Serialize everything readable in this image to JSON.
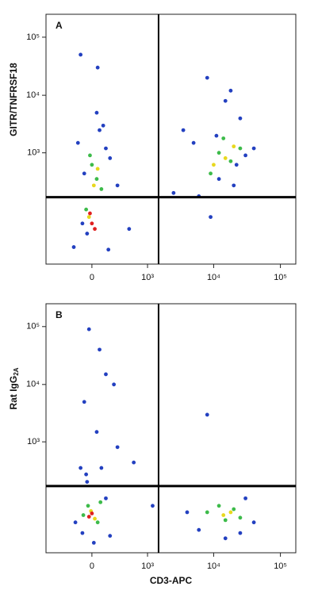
{
  "chart_data": [
    {
      "type": "scatter",
      "panel": "A",
      "y_label": "GITR/TNFRSF18",
      "xlim": [
        -700,
        170000
      ],
      "ylim": [
        -1800,
        248000
      ],
      "xticks": [
        0,
        {
          "value": 1000,
          "label": "10³"
        },
        {
          "value": 10000,
          "label": "10⁴"
        },
        {
          "value": 100000,
          "label": "10⁵"
        }
      ],
      "yticks": [
        {
          "value": 1000,
          "label": "10³"
        },
        {
          "value": 10000,
          "label": "10⁴"
        },
        {
          "value": 100000,
          "label": "10⁵"
        }
      ],
      "quadrant_x": 1480,
      "quadrant_y": 48,
      "series": [
        {
          "color": "#2340c0",
          "x": [
            -150,
            80,
            200,
            -50,
            120,
            -200,
            300,
            50,
            -100,
            150,
            8000,
            15000,
            25000,
            5000,
            12000,
            30000,
            6000,
            20000,
            3500,
            40000,
            60,
            -80,
            180,
            9000,
            18000,
            500,
            2500,
            -120,
            11000,
            22000
          ],
          "y": [
            1500,
            2500,
            800,
            -500,
            3000,
            -900,
            200,
            5000,
            -300,
            1200,
            20000,
            8000,
            4000,
            1500,
            300,
            900,
            60,
            200,
            2500,
            1200,
            30000,
            400,
            -1000,
            -200,
            12000,
            -400,
            100,
            50000,
            2000,
            600
          ]
        },
        {
          "color": "#3dbb4a",
          "x": [
            0,
            50,
            -60,
            100,
            -20,
            12000,
            18000,
            9000,
            25000,
            14000
          ],
          "y": [
            600,
            300,
            -100,
            150,
            900,
            1000,
            700,
            400,
            1200,
            1800
          ]
        },
        {
          "color": "#e8d81e",
          "x": [
            20,
            -30,
            60,
            15000,
            20000,
            10000
          ],
          "y": [
            200,
            -200,
            500,
            800,
            1300,
            600
          ]
        },
        {
          "color": "#e02020",
          "x": [
            0,
            -20,
            30
          ],
          "y": [
            -300,
            -150,
            -400
          ]
        }
      ]
    },
    {
      "type": "scatter",
      "panel": "B",
      "y_label": "Rat IgG",
      "y_label_sub": "2A",
      "x_label": "CD3-APC",
      "xlim": [
        -700,
        170000
      ],
      "ylim": [
        -1800,
        248000
      ],
      "xticks": [
        0,
        {
          "value": 1000,
          "label": "10³"
        },
        {
          "value": 10000,
          "label": "10⁴"
        },
        {
          "value": 100000,
          "label": "10⁵"
        }
      ],
      "yticks": [
        {
          "value": 1000,
          "label": "10³"
        },
        {
          "value": 10000,
          "label": "10⁴"
        },
        {
          "value": 100000,
          "label": "10⁵"
        }
      ],
      "quadrant_x": 1480,
      "quadrant_y": 48,
      "series": [
        {
          "color": "#2340c0",
          "x": [
            -100,
            150,
            -180,
            200,
            -50,
            100,
            6000,
            30000,
            4000,
            25000,
            50,
            -80,
            300,
            -120,
            8000,
            15000,
            40000,
            80,
            -30,
            250,
            600,
            1200,
            -60,
            20,
            150
          ],
          "y": [
            -800,
            -100,
            -500,
            -900,
            100,
            300,
            -700,
            -100,
            -300,
            -800,
            1500,
            5000,
            800,
            300,
            3000,
            -1000,
            -500,
            40000,
            90000,
            10000,
            400,
            -200,
            200,
            -1200,
            15000
          ]
        },
        {
          "color": "#3dbb4a",
          "x": [
            -40,
            60,
            -90,
            90,
            8000,
            15000,
            20000,
            12000,
            25000
          ],
          "y": [
            -200,
            -500,
            -350,
            -150,
            -300,
            -450,
            -250,
            -200,
            -400
          ]
        },
        {
          "color": "#e8d81e",
          "x": [
            -10,
            30,
            14000,
            18000
          ],
          "y": [
            -280,
            -420,
            -350,
            -300
          ]
        },
        {
          "color": "#e02020",
          "x": [
            0,
            -30
          ],
          "y": [
            -320,
            -380
          ]
        }
      ]
    }
  ]
}
